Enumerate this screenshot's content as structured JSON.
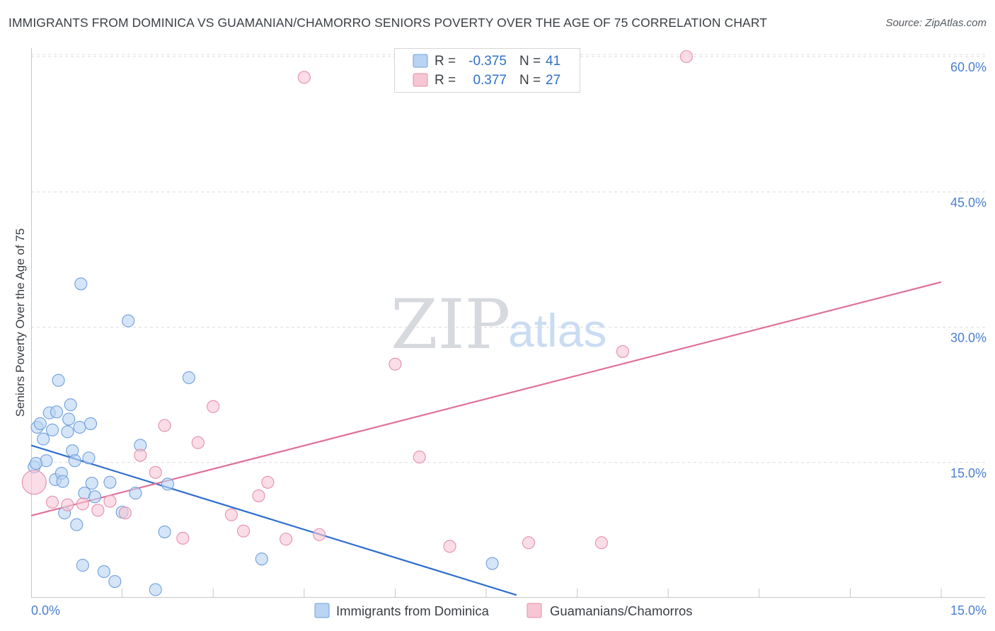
{
  "header": {
    "title": "IMMIGRANTS FROM DOMINICA VS GUAMANIAN/CHAMORRO SENIORS POVERTY OVER THE AGE OF 75 CORRELATION CHART",
    "source": "Source: ZipAtlas.com"
  },
  "watermark": {
    "zip": "ZIP",
    "atlas": "atlas"
  },
  "colors": {
    "blue_fill": "#b9d3f3",
    "blue_stroke": "#6f9fdc",
    "blue_line": "#2f6fce",
    "pink_fill": "#f7c6d5",
    "pink_stroke": "#e48fab",
    "pink_line": "#e0709a",
    "grid": "#dcdcdc",
    "tick_label": "#4a7fcf"
  },
  "legend": {
    "rows": [
      {
        "r_label": "R =",
        "r_value": "-0.375",
        "n_label": "N =",
        "n_value": "41"
      },
      {
        "r_label": "R =",
        "r_value": "0.377",
        "n_label": "N =",
        "n_value": "27"
      }
    ]
  },
  "chart_data": {
    "type": "scatter",
    "title": "IMMIGRANTS FROM DOMINICA VS GUAMANIAN/CHAMORRO SENIORS POVERTY OVER THE AGE OF 75 CORRELATION CHART",
    "xlabel": "",
    "ylabel": "Seniors Poverty Over the Age of 75",
    "xlim": [
      0,
      15
    ],
    "ylim": [
      0,
      60
    ],
    "x_tick_labels": [
      "0.0%",
      "15.0%"
    ],
    "y_ticks": [
      15,
      30,
      45,
      60
    ],
    "y_tick_labels": [
      "15.0%",
      "30.0%",
      "45.0%",
      "60.0%"
    ],
    "grid": true,
    "legend_position": "top-center",
    "series": [
      {
        "name": "Immigrants from Dominica",
        "R": -0.375,
        "N": 41,
        "trend": {
          "x": [
            0.0,
            8.0
          ],
          "y": [
            16.9,
            0.3
          ]
        },
        "points": [
          {
            "x": 0.05,
            "y": 14.5
          },
          {
            "x": 0.1,
            "y": 18.9
          },
          {
            "x": 0.15,
            "y": 19.3
          },
          {
            "x": 0.2,
            "y": 17.6
          },
          {
            "x": 0.25,
            "y": 15.2
          },
          {
            "x": 0.3,
            "y": 20.5
          },
          {
            "x": 0.35,
            "y": 18.6
          },
          {
            "x": 0.4,
            "y": 13.1
          },
          {
            "x": 0.42,
            "y": 20.6
          },
          {
            "x": 0.45,
            "y": 24.1
          },
          {
            "x": 0.5,
            "y": 13.8
          },
          {
            "x": 0.52,
            "y": 12.9
          },
          {
            "x": 0.55,
            "y": 9.4
          },
          {
            "x": 0.6,
            "y": 18.4
          },
          {
            "x": 0.62,
            "y": 19.8
          },
          {
            "x": 0.65,
            "y": 21.4
          },
          {
            "x": 0.68,
            "y": 16.3
          },
          {
            "x": 0.72,
            "y": 15.2
          },
          {
            "x": 0.75,
            "y": 8.1
          },
          {
            "x": 0.8,
            "y": 18.9
          },
          {
            "x": 0.82,
            "y": 34.8
          },
          {
            "x": 0.85,
            "y": 3.6
          },
          {
            "x": 0.88,
            "y": 11.6
          },
          {
            "x": 0.95,
            "y": 15.5
          },
          {
            "x": 0.98,
            "y": 19.3
          },
          {
            "x": 1.0,
            "y": 12.7
          },
          {
            "x": 1.05,
            "y": 11.2
          },
          {
            "x": 1.2,
            "y": 2.9
          },
          {
            "x": 1.3,
            "y": 12.8
          },
          {
            "x": 1.38,
            "y": 1.8
          },
          {
            "x": 1.5,
            "y": 9.5
          },
          {
            "x": 1.6,
            "y": 30.7
          },
          {
            "x": 1.72,
            "y": 11.6
          },
          {
            "x": 1.8,
            "y": 16.9
          },
          {
            "x": 2.05,
            "y": 0.9
          },
          {
            "x": 2.2,
            "y": 7.3
          },
          {
            "x": 2.25,
            "y": 12.6
          },
          {
            "x": 2.6,
            "y": 24.4
          },
          {
            "x": 3.8,
            "y": 4.3
          },
          {
            "x": 7.6,
            "y": 3.8
          },
          {
            "x": 0.08,
            "y": 14.9
          }
        ]
      },
      {
        "name": "Guamanians/Chamorros",
        "R": 0.377,
        "N": 27,
        "trend": {
          "x": [
            0.0,
            15.0
          ],
          "y": [
            9.1,
            35.0
          ]
        },
        "points": [
          {
            "x": 0.05,
            "y": 12.8,
            "large": true
          },
          {
            "x": 0.35,
            "y": 10.6
          },
          {
            "x": 0.6,
            "y": 10.3
          },
          {
            "x": 0.85,
            "y": 10.4
          },
          {
            "x": 1.1,
            "y": 9.7
          },
          {
            "x": 1.3,
            "y": 10.7
          },
          {
            "x": 1.55,
            "y": 9.4
          },
          {
            "x": 1.8,
            "y": 15.8
          },
          {
            "x": 2.05,
            "y": 13.9
          },
          {
            "x": 2.2,
            "y": 19.1
          },
          {
            "x": 2.5,
            "y": 6.6
          },
          {
            "x": 2.75,
            "y": 17.2
          },
          {
            "x": 3.0,
            "y": 21.2
          },
          {
            "x": 3.3,
            "y": 9.2
          },
          {
            "x": 3.5,
            "y": 7.4
          },
          {
            "x": 3.75,
            "y": 11.3
          },
          {
            "x": 3.9,
            "y": 12.8
          },
          {
            "x": 4.2,
            "y": 6.5
          },
          {
            "x": 4.5,
            "y": 57.7
          },
          {
            "x": 4.75,
            "y": 7.0
          },
          {
            "x": 6.0,
            "y": 25.9
          },
          {
            "x": 6.4,
            "y": 15.6
          },
          {
            "x": 6.9,
            "y": 5.7
          },
          {
            "x": 8.2,
            "y": 6.1
          },
          {
            "x": 9.4,
            "y": 6.1
          },
          {
            "x": 9.75,
            "y": 27.3
          },
          {
            "x": 10.8,
            "y": 60.0
          }
        ]
      }
    ]
  }
}
